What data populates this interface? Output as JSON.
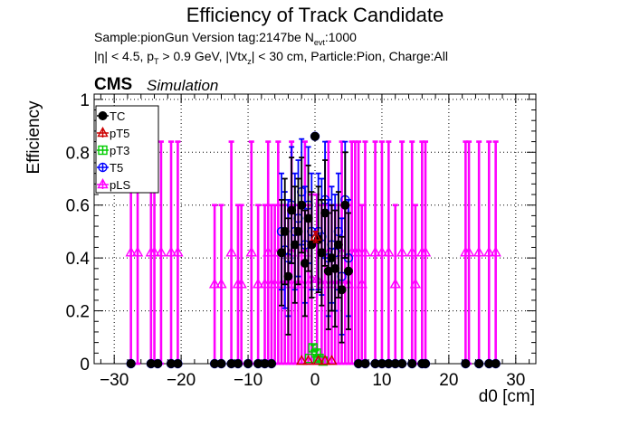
{
  "header": {
    "title": "Efficiency of Track Candidate",
    "sample_prefix": "Sample:pionGun   Version tag:2147be  N",
    "sample_sub": "evt",
    "sample_suffix": ":1000",
    "cuts_a": "|η| < 4.5, p",
    "cuts_sub1": "T",
    "cuts_b": " > 0.9 GeV, |Vtx",
    "cuts_sub2": "z",
    "cuts_c": "| < 30 cm, Particle:Pion, Charge:All",
    "cms": "CMS",
    "simulation": "Simulation"
  },
  "chart_data": {
    "type": "scatter",
    "title": "Efficiency of Track Candidate",
    "xlabel": "d0 [cm]",
    "ylabel": "Efficiency",
    "xlim": [
      -33,
      33
    ],
    "ylim": [
      0,
      1.02
    ],
    "grid": true,
    "legend_position": "top-left",
    "x_ticks": [
      -30,
      -20,
      -10,
      0,
      10,
      20,
      30
    ],
    "x_tick_labels": [
      "−30",
      "−20",
      "−10",
      "0",
      "10",
      "20",
      "30"
    ],
    "y_ticks": [
      0,
      0.2,
      0.4,
      0.6,
      0.8,
      1
    ],
    "y_tick_labels": [
      "0",
      "0.2",
      "0.4",
      "0.6",
      "0.8",
      "1"
    ],
    "series": [
      {
        "name": "TC",
        "color": "#000000",
        "marker": "circle-filled",
        "points": [
          [
            -27.5,
            0
          ],
          [
            -24.5,
            0
          ],
          [
            -23.5,
            0
          ],
          [
            -21.5,
            0
          ],
          [
            -20.5,
            0
          ],
          [
            -15,
            0
          ],
          [
            -14,
            0
          ],
          [
            -12.5,
            0
          ],
          [
            -11.5,
            0
          ],
          [
            -10,
            0
          ],
          [
            -8.5,
            0
          ],
          [
            -7.5,
            0
          ],
          [
            -6.5,
            0
          ],
          [
            -5,
            0.42
          ],
          [
            -4.5,
            0.5
          ],
          [
            -4,
            0.33
          ],
          [
            -3.5,
            0.58
          ],
          [
            -3,
            0.45
          ],
          [
            -2.5,
            0.5
          ],
          [
            -2,
            0.6
          ],
          [
            -1.5,
            0.38
          ],
          [
            -1,
            0.55
          ],
          [
            -0.5,
            0.45
          ],
          [
            0,
            0.86
          ],
          [
            0.5,
            0.47
          ],
          [
            1,
            0.42
          ],
          [
            1.5,
            0.57
          ],
          [
            2,
            0.35
          ],
          [
            2.5,
            0.4
          ],
          [
            3,
            0.36
          ],
          [
            3.5,
            0.45
          ],
          [
            4,
            0.28
          ],
          [
            4.5,
            0.6
          ],
          [
            5,
            0.35
          ],
          [
            6.5,
            0
          ],
          [
            7.5,
            0
          ],
          [
            9,
            0
          ],
          [
            10,
            0
          ],
          [
            11,
            0
          ],
          [
            12,
            0
          ],
          [
            13,
            0
          ],
          [
            14.5,
            0
          ],
          [
            16,
            0
          ],
          [
            16.5,
            0
          ],
          [
            22.5,
            0
          ],
          [
            24.5,
            0
          ],
          [
            26,
            0
          ],
          [
            27,
            0
          ]
        ],
        "errors": [
          0,
          0,
          0,
          0,
          0,
          0,
          0,
          0,
          0,
          0,
          0,
          0,
          0,
          0.2,
          0.2,
          0.22,
          0.2,
          0.22,
          0.2,
          0.18,
          0.2,
          0.2,
          0.2,
          0.01,
          0.2,
          0.2,
          0.2,
          0.22,
          0.2,
          0.22,
          0.2,
          0.2,
          0.2,
          0.22,
          0,
          0,
          0,
          0,
          0,
          0,
          0,
          0,
          0,
          0,
          0,
          0,
          0,
          0
        ]
      },
      {
        "name": "pT5",
        "color": "#cc0000",
        "marker": "triangle-open",
        "points": [
          [
            0.1,
            0.48
          ],
          [
            -1,
            0.01
          ],
          [
            0.5,
            0.01
          ],
          [
            1.5,
            0.01
          ],
          [
            -2,
            0.01
          ],
          [
            2.5,
            0.01
          ]
        ],
        "errors": [
          0.02,
          0,
          0,
          0,
          0,
          0
        ]
      },
      {
        "name": "pT3",
        "color": "#00cc00",
        "marker": "square-open",
        "points": [
          [
            -0.3,
            0.06
          ],
          [
            0.2,
            0.04
          ],
          [
            0.6,
            0.02
          ],
          [
            -0.8,
            0.02
          ],
          [
            1.2,
            0.01
          ]
        ],
        "errors": [
          0.01,
          0.01,
          0.01,
          0,
          0
        ]
      },
      {
        "name": "T5",
        "color": "#0000ff",
        "marker": "circle-open",
        "points": [
          [
            -27.5,
            0
          ],
          [
            -24.5,
            0
          ],
          [
            -23.5,
            0
          ],
          [
            -21.5,
            0
          ],
          [
            -20.5,
            0
          ],
          [
            -15,
            0
          ],
          [
            -14,
            0
          ],
          [
            -12.5,
            0
          ],
          [
            -11.5,
            0
          ],
          [
            -10,
            0
          ],
          [
            -8.5,
            0
          ],
          [
            -7.5,
            0
          ],
          [
            -6.5,
            0
          ],
          [
            -5,
            0.5
          ],
          [
            -4.5,
            0.43
          ],
          [
            -4,
            0.4
          ],
          [
            -3.5,
            0.6
          ],
          [
            -3,
            0.5
          ],
          [
            -2.5,
            0.55
          ],
          [
            -2,
            0.65
          ],
          [
            -1.5,
            0.45
          ],
          [
            -1,
            0.6
          ],
          [
            -0.5,
            0.5
          ],
          [
            0,
            0.86
          ],
          [
            0.5,
            0.5
          ],
          [
            1,
            0.48
          ],
          [
            1.5,
            0.62
          ],
          [
            2,
            0.4
          ],
          [
            2.5,
            0.45
          ],
          [
            3,
            0.42
          ],
          [
            3.5,
            0.5
          ],
          [
            4,
            0.33
          ],
          [
            4.5,
            0.62
          ],
          [
            5,
            0.4
          ],
          [
            6.5,
            0
          ],
          [
            7.5,
            0
          ],
          [
            9,
            0
          ],
          [
            10,
            0
          ],
          [
            11,
            0
          ],
          [
            12,
            0
          ],
          [
            13,
            0
          ],
          [
            14.5,
            0
          ],
          [
            16,
            0
          ],
          [
            16.5,
            0
          ],
          [
            22.5,
            0
          ],
          [
            24.5,
            0
          ],
          [
            26,
            0
          ],
          [
            27,
            0
          ]
        ],
        "errors": [
          0,
          0,
          0,
          0,
          0,
          0,
          0,
          0,
          0,
          0,
          0,
          0,
          0,
          0.22,
          0.22,
          0.22,
          0.22,
          0.22,
          0.22,
          0.2,
          0.22,
          0.22,
          0.22,
          0.01,
          0.22,
          0.22,
          0.22,
          0.22,
          0.22,
          0.22,
          0.22,
          0.22,
          0.22,
          0.22,
          0,
          0,
          0,
          0,
          0,
          0,
          0,
          0,
          0,
          0,
          0,
          0,
          0,
          0
        ]
      },
      {
        "name": "pLS",
        "color": "#ff00ff",
        "marker": "triangle-open",
        "points": [
          [
            -27.5,
            0.42
          ],
          [
            -26.5,
            0.42
          ],
          [
            -24.5,
            0.42
          ],
          [
            -24,
            0.42
          ],
          [
            -23,
            0.42
          ],
          [
            -21.5,
            0.42
          ],
          [
            -20.5,
            0.42
          ],
          [
            -15,
            0.3
          ],
          [
            -14,
            0.3
          ],
          [
            -12.5,
            0.42
          ],
          [
            -11.5,
            0.3
          ],
          [
            -11,
            0.3
          ],
          [
            -9.5,
            0.42
          ],
          [
            -8.5,
            0.3
          ],
          [
            -7.5,
            0.3
          ],
          [
            -7,
            0.42
          ],
          [
            -6.5,
            0.3
          ],
          [
            -6,
            0.3
          ],
          [
            -5.5,
            0.42
          ],
          [
            -5,
            0.3
          ],
          [
            -4.5,
            0.3
          ],
          [
            -4,
            0.3
          ],
          [
            -3.5,
            0.42
          ],
          [
            -3,
            0.3
          ],
          [
            -2.5,
            0.3
          ],
          [
            -2,
            0.3
          ],
          [
            -1.5,
            0.42
          ],
          [
            -1,
            0.3
          ],
          [
            -0.5,
            0.32
          ],
          [
            0.3,
            0.32
          ],
          [
            1,
            0.3
          ],
          [
            1.5,
            0.3
          ],
          [
            2,
            0.42
          ],
          [
            2.5,
            0.3
          ],
          [
            3,
            0.3
          ],
          [
            3.5,
            0.3
          ],
          [
            4,
            0.42
          ],
          [
            4.5,
            0.3
          ],
          [
            5,
            0.3
          ],
          [
            5.5,
            0.42
          ],
          [
            6,
            0.42
          ],
          [
            6.5,
            0.42
          ],
          [
            7,
            0.3
          ],
          [
            7.5,
            0.42
          ],
          [
            9,
            0.42
          ],
          [
            10,
            0.42
          ],
          [
            11,
            0.42
          ],
          [
            12,
            0.3
          ],
          [
            13,
            0.42
          ],
          [
            14.5,
            0.42
          ],
          [
            15,
            0.3
          ],
          [
            16,
            0.42
          ],
          [
            16.5,
            0.42
          ],
          [
            22.5,
            0.42
          ],
          [
            23,
            0.42
          ],
          [
            24.5,
            0.42
          ],
          [
            26,
            0.42
          ],
          [
            27,
            0.42
          ]
        ],
        "errors": [
          0.42,
          0.42,
          0.42,
          0.42,
          0.42,
          0.42,
          0.42,
          0.3,
          0.3,
          0.42,
          0.3,
          0.3,
          0.42,
          0.3,
          0.3,
          0.42,
          0.3,
          0.3,
          0.42,
          0.3,
          0.3,
          0.3,
          0.42,
          0.3,
          0.3,
          0.3,
          0.42,
          0.3,
          0.32,
          0.32,
          0.3,
          0.3,
          0.42,
          0.3,
          0.3,
          0.3,
          0.42,
          0.3,
          0.3,
          0.42,
          0.42,
          0.42,
          0.3,
          0.42,
          0.42,
          0.42,
          0.42,
          0.3,
          0.42,
          0.42,
          0.3,
          0.42,
          0.42,
          0.42,
          0.42,
          0.42,
          0.42,
          0.42
        ]
      }
    ]
  }
}
